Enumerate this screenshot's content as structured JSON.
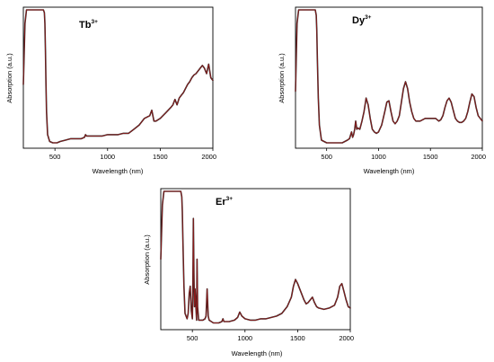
{
  "chart_data": [
    {
      "type": "line",
      "title": "Tb",
      "title_sup": "3+",
      "xlabel": "Wavelength (nm)",
      "ylabel": "Absorption (a.u.)",
      "xlim": [
        200,
        2000
      ],
      "ylim": [
        0,
        1
      ],
      "xticks": [
        500,
        1000,
        1500,
        2000
      ],
      "line_color": "#8b1a1a",
      "overlay_color": "#2b2b2b",
      "grid": false,
      "x": [
        200,
        215,
        230,
        250,
        300,
        350,
        390,
        400,
        405,
        410,
        415,
        420,
        430,
        450,
        480,
        500,
        520,
        550,
        600,
        650,
        700,
        750,
        780,
        790,
        800,
        850,
        900,
        950,
        1000,
        1050,
        1100,
        1150,
        1200,
        1250,
        1300,
        1350,
        1400,
        1420,
        1440,
        1460,
        1480,
        1500,
        1550,
        1600,
        1620,
        1640,
        1660,
        1680,
        1700,
        1720,
        1740,
        1760,
        1780,
        1800,
        1820,
        1840,
        1860,
        1880,
        1900,
        1920,
        1940,
        1960,
        1980,
        2000
      ],
      "y": [
        0.45,
        0.9,
        1.0,
        1.0,
        1.0,
        1.0,
        1.0,
        0.98,
        0.9,
        0.7,
        0.45,
        0.25,
        0.08,
        0.03,
        0.02,
        0.02,
        0.02,
        0.03,
        0.04,
        0.05,
        0.05,
        0.05,
        0.06,
        0.08,
        0.07,
        0.07,
        0.07,
        0.07,
        0.08,
        0.08,
        0.08,
        0.09,
        0.09,
        0.12,
        0.15,
        0.2,
        0.22,
        0.26,
        0.18,
        0.18,
        0.19,
        0.2,
        0.24,
        0.28,
        0.3,
        0.34,
        0.3,
        0.35,
        0.37,
        0.39,
        0.42,
        0.45,
        0.47,
        0.5,
        0.52,
        0.53,
        0.55,
        0.57,
        0.59,
        0.57,
        0.53,
        0.6,
        0.5,
        0.48
      ]
    },
    {
      "type": "line",
      "title": "Dy",
      "title_sup": "3+",
      "xlabel": "Wavelength (nm)",
      "ylabel": "Absorption (a.u.)",
      "xlim": [
        200,
        2000
      ],
      "ylim": [
        0,
        1
      ],
      "xticks": [
        500,
        1000,
        1500,
        2000
      ],
      "line_color": "#8b1a1a",
      "overlay_color": "#2b2b2b",
      "grid": false,
      "x": [
        200,
        215,
        230,
        250,
        300,
        350,
        390,
        400,
        405,
        410,
        420,
        430,
        450,
        500,
        550,
        600,
        650,
        700,
        720,
        740,
        750,
        760,
        770,
        780,
        790,
        800,
        820,
        840,
        860,
        880,
        900,
        920,
        940,
        960,
        980,
        1000,
        1030,
        1060,
        1080,
        1100,
        1120,
        1140,
        1160,
        1180,
        1200,
        1220,
        1240,
        1260,
        1280,
        1300,
        1320,
        1340,
        1360,
        1400,
        1450,
        1500,
        1550,
        1580,
        1600,
        1620,
        1640,
        1660,
        1680,
        1700,
        1720,
        1740,
        1760,
        1780,
        1800,
        1820,
        1840,
        1860,
        1880,
        1900,
        1920,
        1940,
        1960,
        1980,
        2000
      ],
      "y": [
        0.4,
        0.9,
        1.0,
        1.0,
        1.0,
        1.0,
        1.0,
        0.96,
        0.85,
        0.65,
        0.35,
        0.15,
        0.04,
        0.02,
        0.02,
        0.02,
        0.02,
        0.04,
        0.05,
        0.1,
        0.06,
        0.08,
        0.12,
        0.18,
        0.12,
        0.13,
        0.12,
        0.18,
        0.25,
        0.35,
        0.3,
        0.2,
        0.12,
        0.1,
        0.09,
        0.1,
        0.15,
        0.25,
        0.32,
        0.33,
        0.25,
        0.18,
        0.16,
        0.18,
        0.22,
        0.32,
        0.42,
        0.47,
        0.42,
        0.32,
        0.25,
        0.2,
        0.18,
        0.18,
        0.2,
        0.2,
        0.2,
        0.18,
        0.19,
        0.22,
        0.28,
        0.33,
        0.35,
        0.32,
        0.26,
        0.2,
        0.18,
        0.17,
        0.17,
        0.18,
        0.2,
        0.25,
        0.32,
        0.38,
        0.36,
        0.28,
        0.22,
        0.2,
        0.18
      ]
    },
    {
      "type": "line",
      "title": "Er",
      "title_sup": "3+",
      "xlabel": "Wavelength (nm)",
      "ylabel": "Absorption (a.u.)",
      "xlim": [
        200,
        2000
      ],
      "ylim": [
        0,
        1
      ],
      "xticks": [
        500,
        1000,
        1500,
        2000
      ],
      "line_color": "#8b1a1a",
      "overlay_color": "#2b2b2b",
      "grid": false,
      "x": [
        200,
        215,
        230,
        250,
        300,
        350,
        390,
        400,
        405,
        410,
        420,
        430,
        450,
        460,
        470,
        480,
        490,
        500,
        505,
        510,
        515,
        520,
        525,
        530,
        540,
        545,
        550,
        560,
        580,
        600,
        620,
        630,
        640,
        650,
        660,
        680,
        700,
        750,
        780,
        790,
        800,
        850,
        900,
        930,
        950,
        970,
        1000,
        1050,
        1100,
        1150,
        1200,
        1250,
        1300,
        1350,
        1400,
        1440,
        1460,
        1480,
        1500,
        1520,
        1540,
        1560,
        1580,
        1600,
        1620,
        1640,
        1660,
        1680,
        1700,
        1750,
        1800,
        1850,
        1880,
        1900,
        1920,
        1940,
        1960,
        1980,
        2000
      ],
      "y": [
        0.5,
        0.9,
        1.0,
        1.0,
        1.0,
        1.0,
        1.0,
        0.96,
        0.85,
        0.65,
        0.3,
        0.1,
        0.06,
        0.1,
        0.25,
        0.3,
        0.12,
        0.06,
        0.35,
        0.8,
        0.4,
        0.15,
        0.28,
        0.2,
        0.05,
        0.5,
        0.15,
        0.05,
        0.05,
        0.05,
        0.06,
        0.08,
        0.28,
        0.08,
        0.05,
        0.04,
        0.03,
        0.03,
        0.04,
        0.06,
        0.04,
        0.04,
        0.05,
        0.07,
        0.11,
        0.08,
        0.06,
        0.05,
        0.05,
        0.06,
        0.06,
        0.07,
        0.08,
        0.1,
        0.15,
        0.22,
        0.3,
        0.35,
        0.32,
        0.28,
        0.24,
        0.2,
        0.17,
        0.18,
        0.2,
        0.22,
        0.18,
        0.15,
        0.14,
        0.13,
        0.14,
        0.16,
        0.22,
        0.3,
        0.32,
        0.26,
        0.2,
        0.15,
        0.14
      ]
    }
  ]
}
